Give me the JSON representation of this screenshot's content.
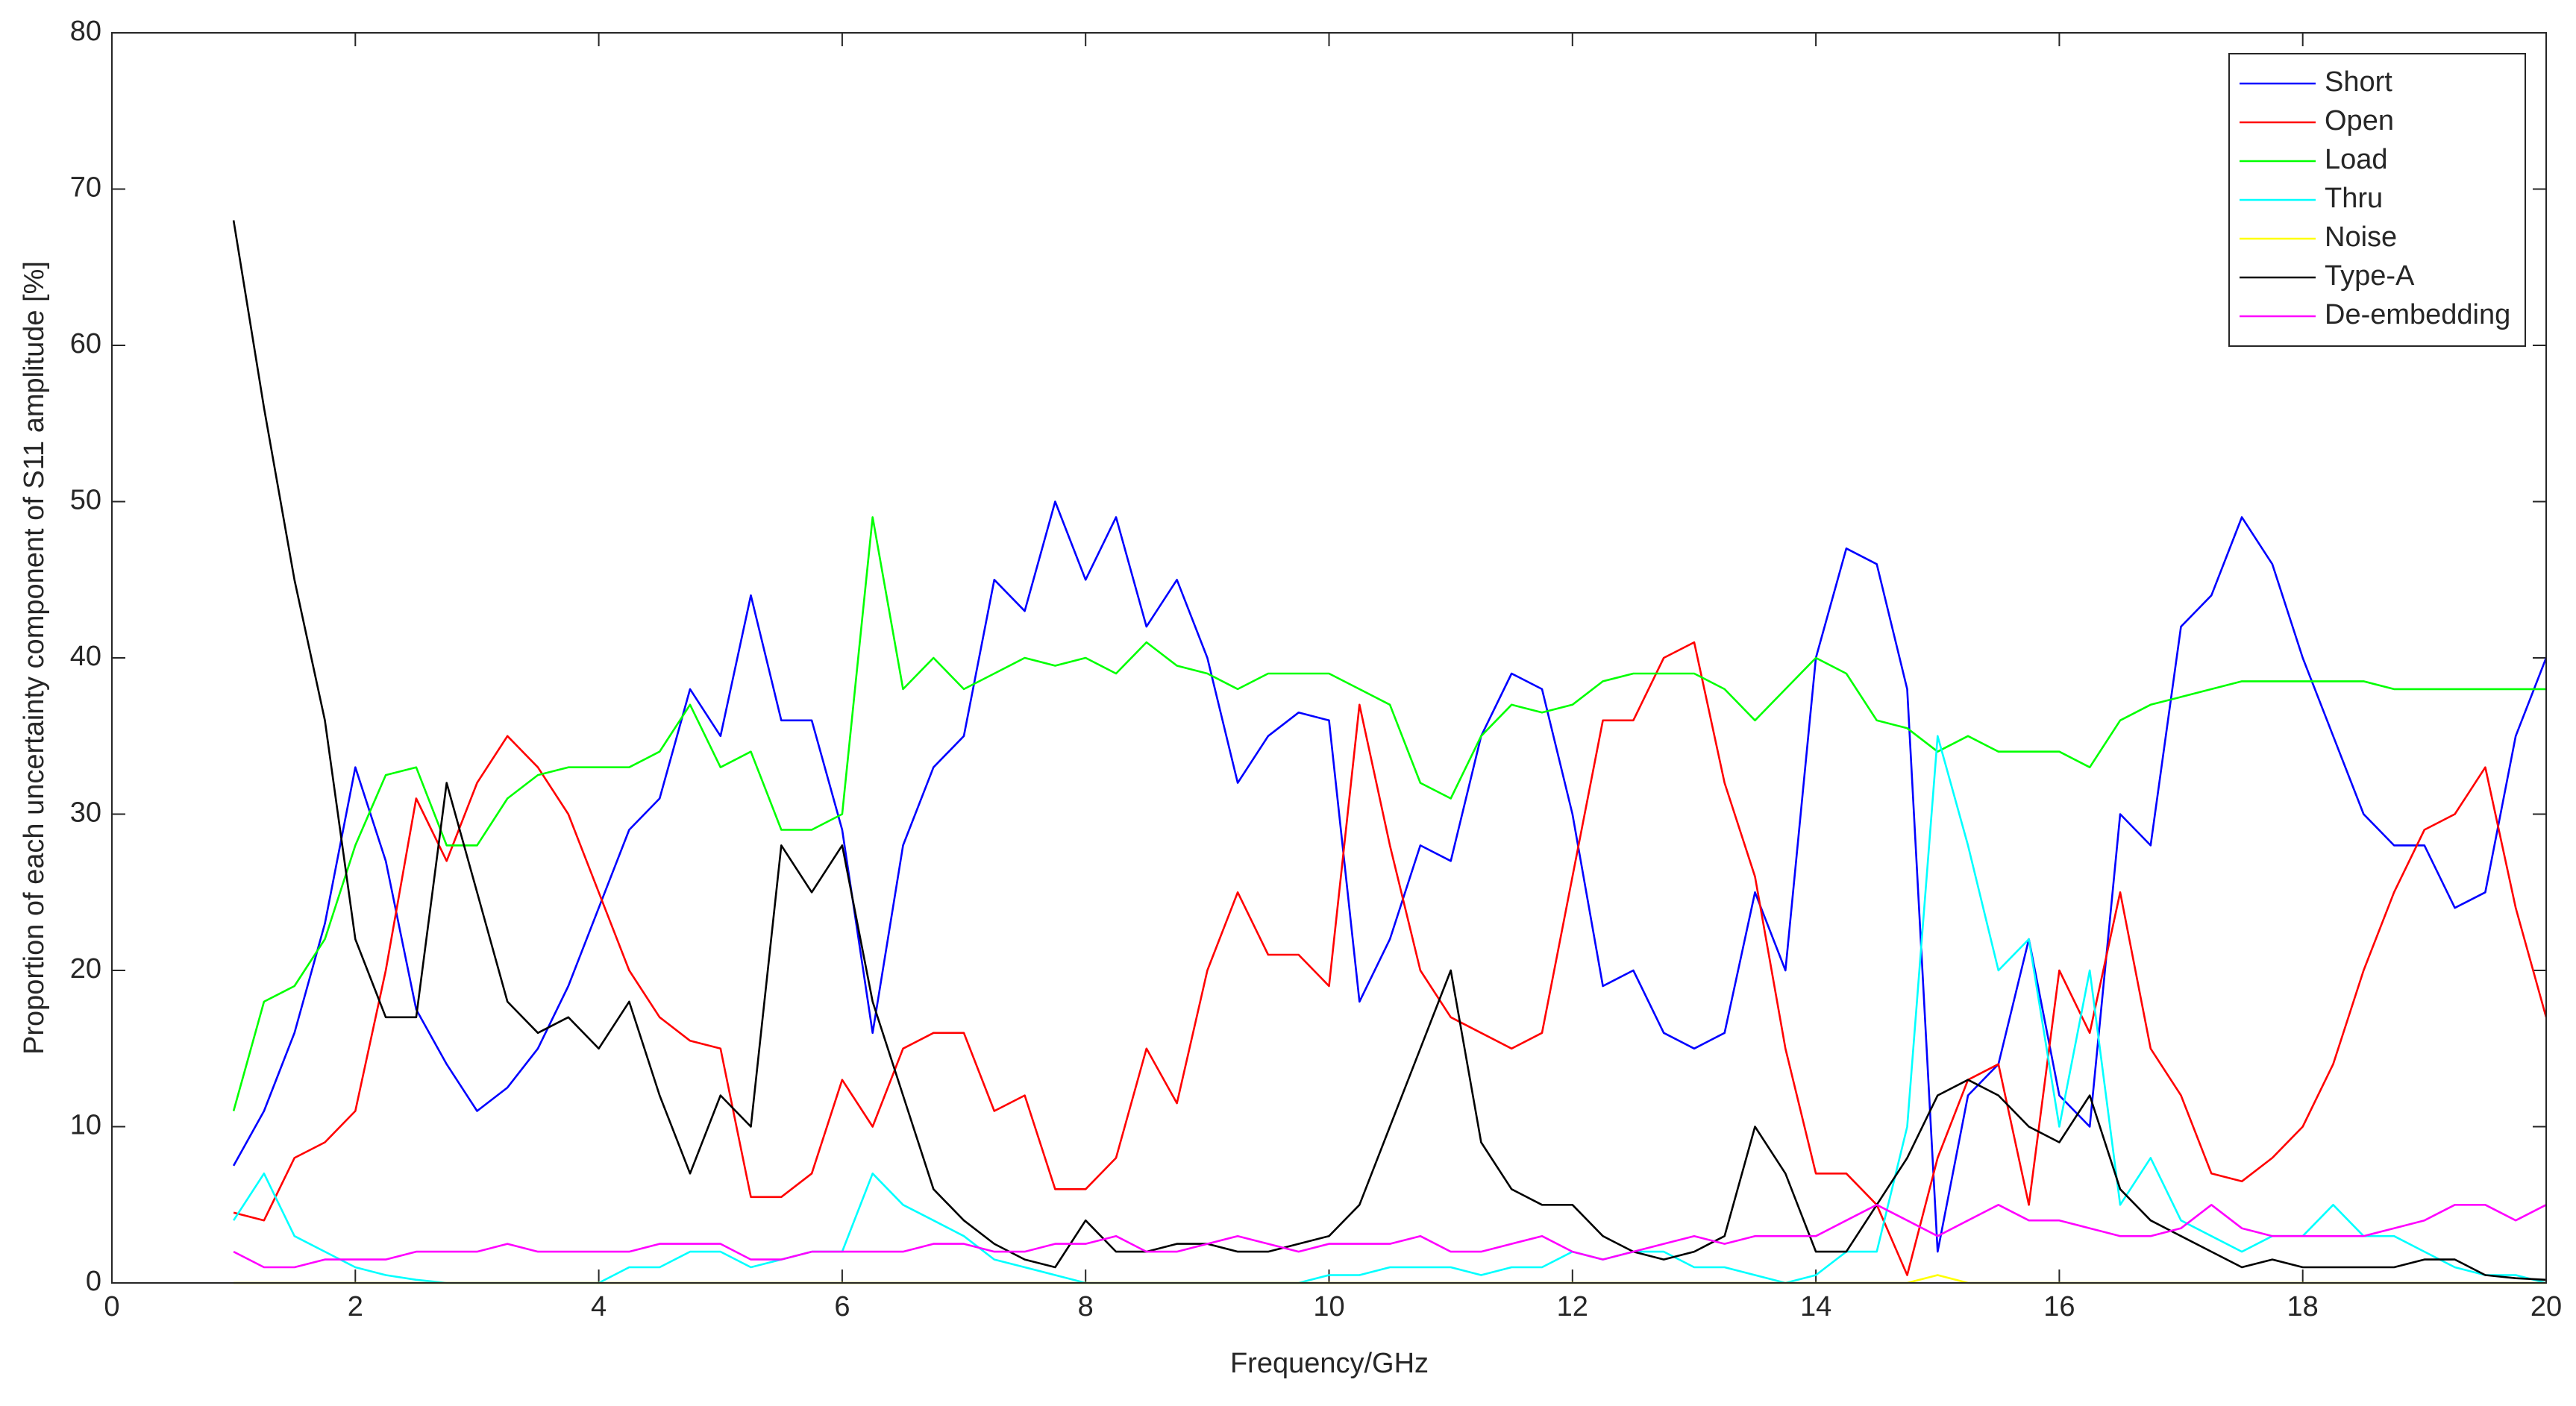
{
  "chart_data": {
    "type": "line",
    "xlabel": "Frequency/GHz",
    "ylabel": "Proportion of each uncertainty component of S11 amplitude [%]",
    "xlim": [
      0,
      20
    ],
    "ylim": [
      0,
      80
    ],
    "xticks": [
      0,
      2,
      4,
      6,
      8,
      10,
      12,
      14,
      16,
      18,
      20
    ],
    "yticks": [
      0,
      10,
      20,
      30,
      40,
      50,
      60,
      70,
      80
    ],
    "legend": "northeast",
    "x": [
      1,
      1.25,
      1.5,
      1.75,
      2,
      2.25,
      2.5,
      2.75,
      3,
      3.25,
      3.5,
      3.75,
      4,
      4.25,
      4.5,
      4.75,
      5,
      5.25,
      5.5,
      5.75,
      6,
      6.25,
      6.5,
      6.75,
      7,
      7.25,
      7.5,
      7.75,
      8,
      8.25,
      8.5,
      8.75,
      9,
      9.25,
      9.5,
      9.75,
      10,
      10.25,
      10.5,
      10.75,
      11,
      11.25,
      11.5,
      11.75,
      12,
      12.25,
      12.5,
      12.75,
      13,
      13.25,
      13.5,
      13.75,
      14,
      14.25,
      14.5,
      14.75,
      15,
      15.25,
      15.5,
      15.75,
      16,
      16.25,
      16.5,
      16.75,
      17,
      17.25,
      17.5,
      17.75,
      18,
      18.25,
      18.5,
      18.75,
      19,
      19.25,
      19.5,
      19.75,
      20
    ],
    "series": [
      {
        "name": "Short",
        "color": "#0000ff",
        "values": [
          7.5,
          11,
          16,
          23,
          33,
          27,
          17.5,
          14,
          11,
          12.5,
          15,
          19,
          24,
          29,
          31,
          38,
          35,
          44,
          36,
          36,
          29,
          16,
          28,
          33,
          35,
          45,
          43,
          50,
          45,
          49,
          42,
          45,
          40,
          32,
          35,
          36.5,
          36,
          18,
          22,
          28,
          27,
          35,
          39,
          38,
          30,
          19,
          20,
          16,
          15,
          16,
          25,
          20,
          40,
          47,
          46,
          38,
          2,
          12,
          14,
          22,
          12,
          10,
          30,
          28,
          42,
          44,
          49,
          46,
          40,
          35,
          30,
          28,
          28,
          24,
          25,
          35,
          40
        ]
      },
      {
        "name": "Open",
        "color": "#ff0000",
        "values": [
          4.5,
          4,
          8,
          9,
          11,
          20,
          31,
          27,
          32,
          35,
          33,
          30,
          25,
          20,
          17,
          15.5,
          15,
          5.5,
          5.5,
          7,
          13,
          10,
          15,
          16,
          16,
          11,
          12,
          6,
          6,
          8,
          15,
          11.5,
          20,
          25,
          21,
          21,
          19,
          37,
          28,
          20,
          17,
          16,
          15,
          16,
          26,
          36,
          36,
          40,
          41,
          32,
          26,
          15,
          7,
          7,
          5,
          0.5,
          8,
          13,
          14,
          5,
          20,
          16,
          25,
          15,
          12,
          7,
          6.5,
          8,
          10,
          14,
          20,
          25,
          29,
          30,
          33,
          24,
          17
        ]
      },
      {
        "name": "Load",
        "color": "#00ff00",
        "values": [
          11,
          18,
          19,
          22,
          28,
          32.5,
          33,
          28,
          28,
          31,
          32.5,
          33,
          33,
          33,
          34,
          37,
          33,
          34,
          29,
          29,
          30,
          49,
          38,
          40,
          38,
          39,
          40,
          39.5,
          40,
          39,
          41,
          39.5,
          39,
          38,
          39,
          39,
          39,
          38,
          37,
          32,
          31,
          35,
          37,
          36.5,
          37,
          38.5,
          39,
          39,
          39,
          38,
          36,
          38,
          40,
          39,
          36,
          35.5,
          34,
          35,
          34,
          34,
          34,
          33,
          36,
          37,
          37.5,
          38,
          38.5,
          38.5,
          38.5,
          38.5,
          38.5,
          38,
          38,
          38,
          38,
          38,
          38
        ]
      },
      {
        "name": "Thru",
        "color": "#00ffff",
        "values": [
          4,
          7,
          3,
          2,
          1,
          0.5,
          0.2,
          0,
          0,
          0,
          0,
          0,
          0,
          1,
          1,
          2,
          2,
          1,
          1.5,
          2,
          2,
          7,
          5,
          4,
          3,
          1.5,
          1,
          0.5,
          0,
          0,
          0,
          0,
          0,
          0,
          0,
          0,
          0.5,
          0.5,
          1,
          1,
          1,
          0.5,
          1,
          1,
          2,
          1.5,
          2,
          2,
          1,
          1,
          0.5,
          0,
          0.5,
          2,
          2,
          10,
          35,
          28,
          20,
          22,
          10,
          20,
          5,
          8,
          4,
          3,
          2,
          3,
          3,
          5,
          3,
          3,
          2,
          1,
          0.5,
          0.5,
          0
        ]
      },
      {
        "name": "Noise",
        "color": "#ffff00",
        "values": [
          0,
          0,
          0,
          0,
          0,
          0,
          0,
          0,
          0,
          0,
          0,
          0,
          0,
          0,
          0,
          0,
          0,
          0,
          0,
          0,
          0,
          0,
          0,
          0,
          0,
          0,
          0,
          0,
          0,
          0,
          0,
          0,
          0,
          0,
          0,
          0,
          0,
          0,
          0,
          0,
          0,
          0,
          0,
          0,
          0,
          0,
          0,
          0,
          0,
          0,
          0,
          0,
          0,
          0,
          0,
          0,
          0.5,
          0,
          0,
          0,
          0,
          0,
          0,
          0,
          0,
          0,
          0,
          0,
          0,
          0,
          0,
          0,
          0,
          0,
          0,
          0,
          0
        ]
      },
      {
        "name": "Type-A",
        "color": "#000000",
        "values": [
          68,
          56,
          45,
          36,
          22,
          17,
          17,
          32,
          25,
          18,
          16,
          17,
          15,
          18,
          12,
          7,
          12,
          10,
          28,
          25,
          28,
          18,
          12,
          6,
          4,
          2.5,
          1.5,
          1,
          4,
          2,
          2,
          2.5,
          2.5,
          2,
          2,
          2.5,
          3,
          5,
          10,
          15,
          20,
          9,
          6,
          5,
          5,
          3,
          2,
          1.5,
          2,
          3,
          10,
          7,
          2,
          2,
          5,
          8,
          12,
          13,
          12,
          10,
          9,
          12,
          6,
          4,
          3,
          2,
          1,
          1.5,
          1,
          1,
          1,
          1,
          1.5,
          1.5,
          0.5,
          0.3,
          0.2
        ]
      },
      {
        "name": "De-embedding",
        "color": "#ff00ff",
        "values": [
          2,
          1,
          1,
          1.5,
          1.5,
          1.5,
          2,
          2,
          2,
          2.5,
          2,
          2,
          2,
          2,
          2.5,
          2.5,
          2.5,
          1.5,
          1.5,
          2,
          2,
          2,
          2,
          2.5,
          2.5,
          2,
          2,
          2.5,
          2.5,
          3,
          2,
          2,
          2.5,
          3,
          2.5,
          2,
          2.5,
          2.5,
          2.5,
          3,
          2,
          2,
          2.5,
          3,
          2,
          1.5,
          2,
          2.5,
          3,
          2.5,
          3,
          3,
          3,
          4,
          5,
          4,
          3,
          4,
          5,
          4,
          4,
          3.5,
          3,
          3,
          3.5,
          5,
          3.5,
          3,
          3,
          3,
          3,
          3.5,
          4,
          5,
          5,
          4,
          5
        ]
      }
    ]
  }
}
